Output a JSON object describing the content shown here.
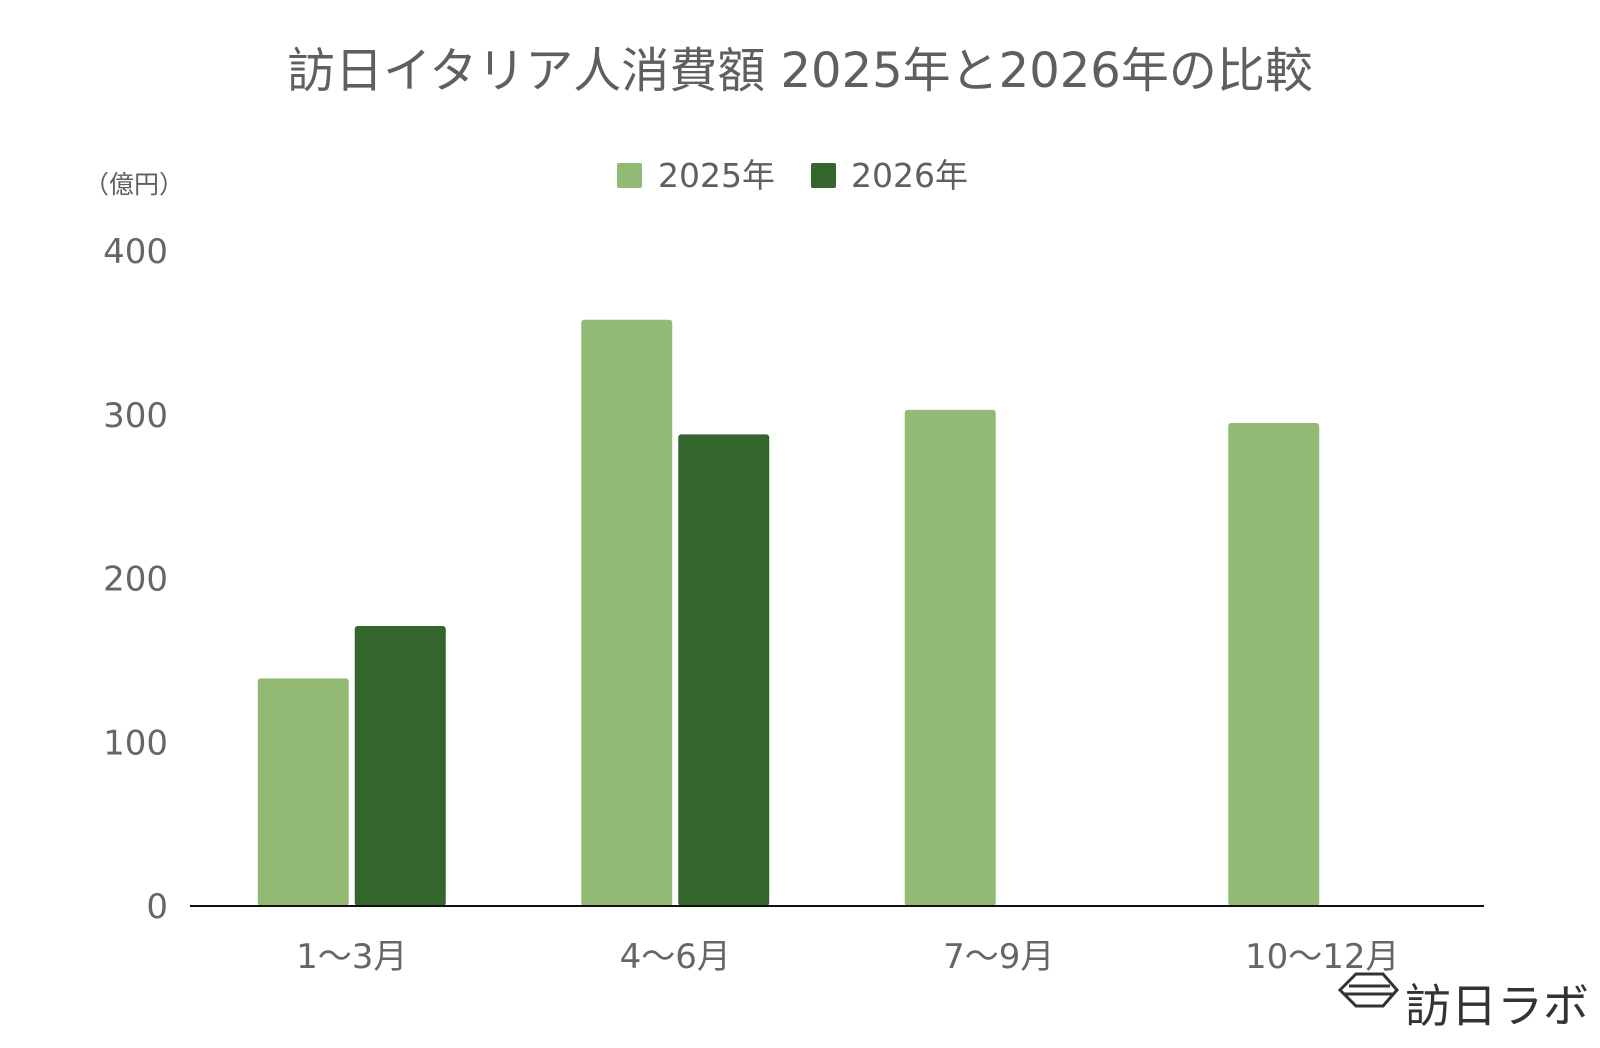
{
  "chart_data": {
    "type": "bar",
    "title": "訪日イタリア人消費額 2025年と2026年の比較",
    "ylabel": "（億円）",
    "xlabel": "",
    "ylim": [
      0,
      400
    ],
    "yticks": [
      0,
      100,
      200,
      300,
      400
    ],
    "categories": [
      "1～3月",
      "4～6月",
      "7～9月",
      "10～12月"
    ],
    "series": [
      {
        "name": "2025年",
        "color": "#93ba74",
        "values": [
          139,
          358,
          303,
          295
        ]
      },
      {
        "name": "2026年",
        "color": "#33652c",
        "values": [
          171,
          288,
          null,
          null
        ]
      }
    ],
    "grid": false,
    "legend": "top-center"
  },
  "brand": {
    "name": "訪日ラボ",
    "icon": "hexagon-logo-icon"
  }
}
